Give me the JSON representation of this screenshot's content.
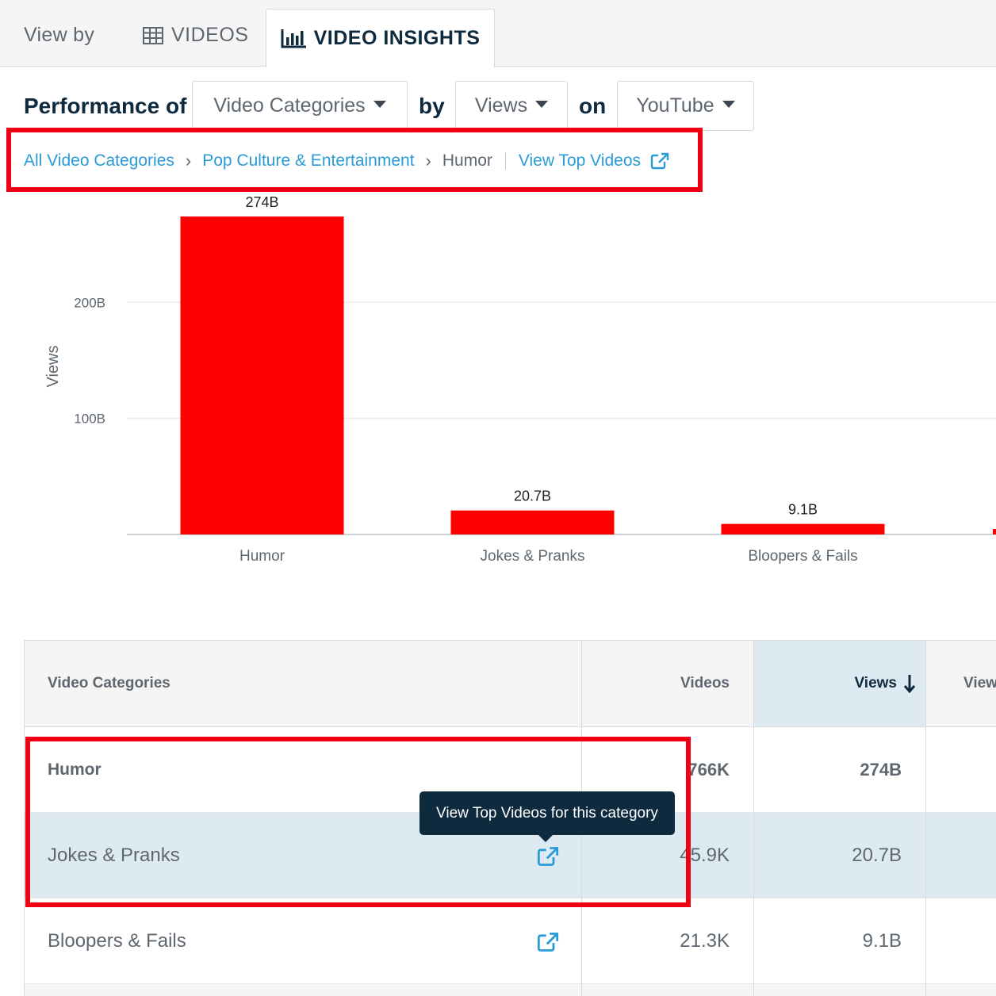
{
  "tabs": {
    "view_by_label": "View by",
    "videos_label": "VIDEOS",
    "insights_label": "VIDEO INSIGHTS"
  },
  "filters": {
    "performance_label": "Performance of",
    "metric_dimension": "Video Categories",
    "by_label": "by",
    "metric": "Views",
    "on_label": "on",
    "platform": "YouTube"
  },
  "breadcrumb": {
    "root": "All Video Categories",
    "parent": "Pop Culture & Entertainment",
    "current": "Humor",
    "action": "View Top Videos"
  },
  "colors": {
    "bar": "#ff0000",
    "highlight": "#f00014",
    "link": "#2a9bd6",
    "selected_row": "#deeaf1",
    "tooltip_bg": "#0e2a3e"
  },
  "chart_data": {
    "type": "bar",
    "categories": [
      "Humor",
      "Jokes & Pranks",
      "Bloopers & Fails"
    ],
    "values": [
      274,
      20.7,
      9.1
    ],
    "data_labels": [
      "274B",
      "20.7B",
      "9.1B"
    ],
    "ylabel": "Views",
    "yticks": [
      100,
      200
    ],
    "ytick_labels": [
      "100B",
      "200B"
    ],
    "ylim": [
      0,
      274
    ],
    "grid": true
  },
  "table": {
    "headers": {
      "category": "Video Categories",
      "videos": "Videos",
      "views": "Views",
      "views_more": "View"
    },
    "rows": [
      {
        "category": "Humor",
        "videos": "766K",
        "views": "274B"
      },
      {
        "category": "Jokes & Pranks",
        "videos": "45.9K",
        "views": "20.7B"
      },
      {
        "category": "Bloopers & Fails",
        "videos": "21.3K",
        "views": "9.1B"
      }
    ],
    "tooltip": "View Top Videos for this category"
  }
}
